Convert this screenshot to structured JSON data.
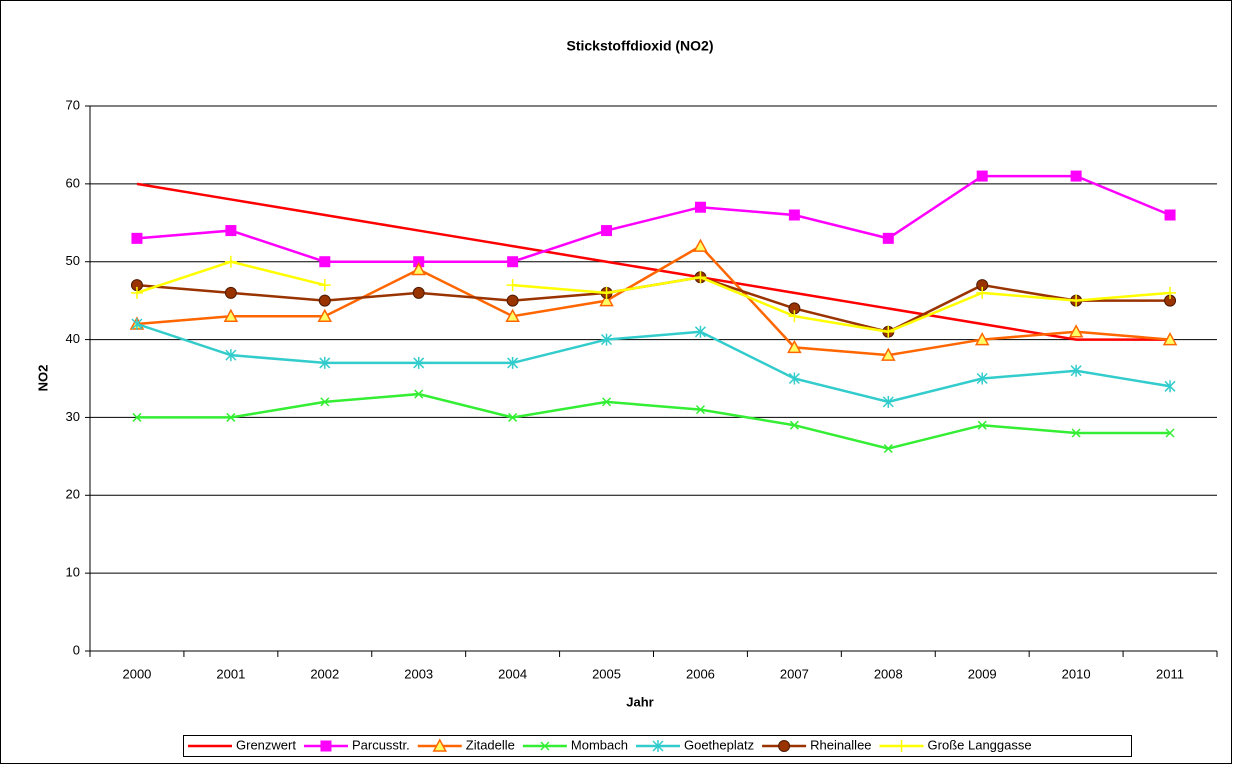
{
  "chart_data": {
    "type": "line",
    "title": "Stickstoffdioxid (NO2)",
    "x_label": "Jahr",
    "y_label": "NO2",
    "categories": [
      "2000",
      "2001",
      "2002",
      "2003",
      "2004",
      "2005",
      "2006",
      "2007",
      "2008",
      "2009",
      "2010",
      "2011"
    ],
    "ylim": [
      0,
      70
    ],
    "yticks": [
      0,
      10,
      20,
      30,
      40,
      50,
      60,
      70
    ],
    "grid": true,
    "legend": "bottom",
    "series": [
      {
        "name": "Grenzwert",
        "color": "#ff0000",
        "marker": "none",
        "values": [
          60,
          58,
          56,
          54,
          52,
          50,
          48,
          46,
          44,
          42,
          40,
          40
        ]
      },
      {
        "name": "Parcusstr.",
        "color": "#ff00ff",
        "marker": "square",
        "values": [
          53,
          54,
          50,
          50,
          50,
          54,
          57,
          56,
          53,
          61,
          61,
          56
        ]
      },
      {
        "name": "Zitadelle",
        "color": "#ff6600",
        "marker": "triangle",
        "values": [
          42,
          43,
          43,
          49,
          43,
          45,
          52,
          39,
          38,
          40,
          41,
          40
        ]
      },
      {
        "name": "Mombach",
        "color": "#33ee33",
        "marker": "x",
        "values": [
          30,
          30,
          32,
          33,
          30,
          32,
          31,
          29,
          26,
          29,
          28,
          28
        ]
      },
      {
        "name": "Goetheplatz",
        "color": "#33cccc",
        "marker": "asterisk",
        "values": [
          42,
          38,
          37,
          37,
          37,
          40,
          41,
          35,
          32,
          35,
          36,
          34
        ]
      },
      {
        "name": "Rheinallee",
        "color": "#993300",
        "marker": "circle",
        "values": [
          47,
          46,
          45,
          46,
          45,
          46,
          48,
          44,
          41,
          47,
          45,
          45
        ]
      },
      {
        "name": "Große Langgasse",
        "color": "#ffff00",
        "marker": "plus",
        "values": [
          46,
          50,
          47,
          null,
          47,
          46,
          48,
          43,
          41,
          46,
          45,
          46
        ]
      }
    ]
  }
}
